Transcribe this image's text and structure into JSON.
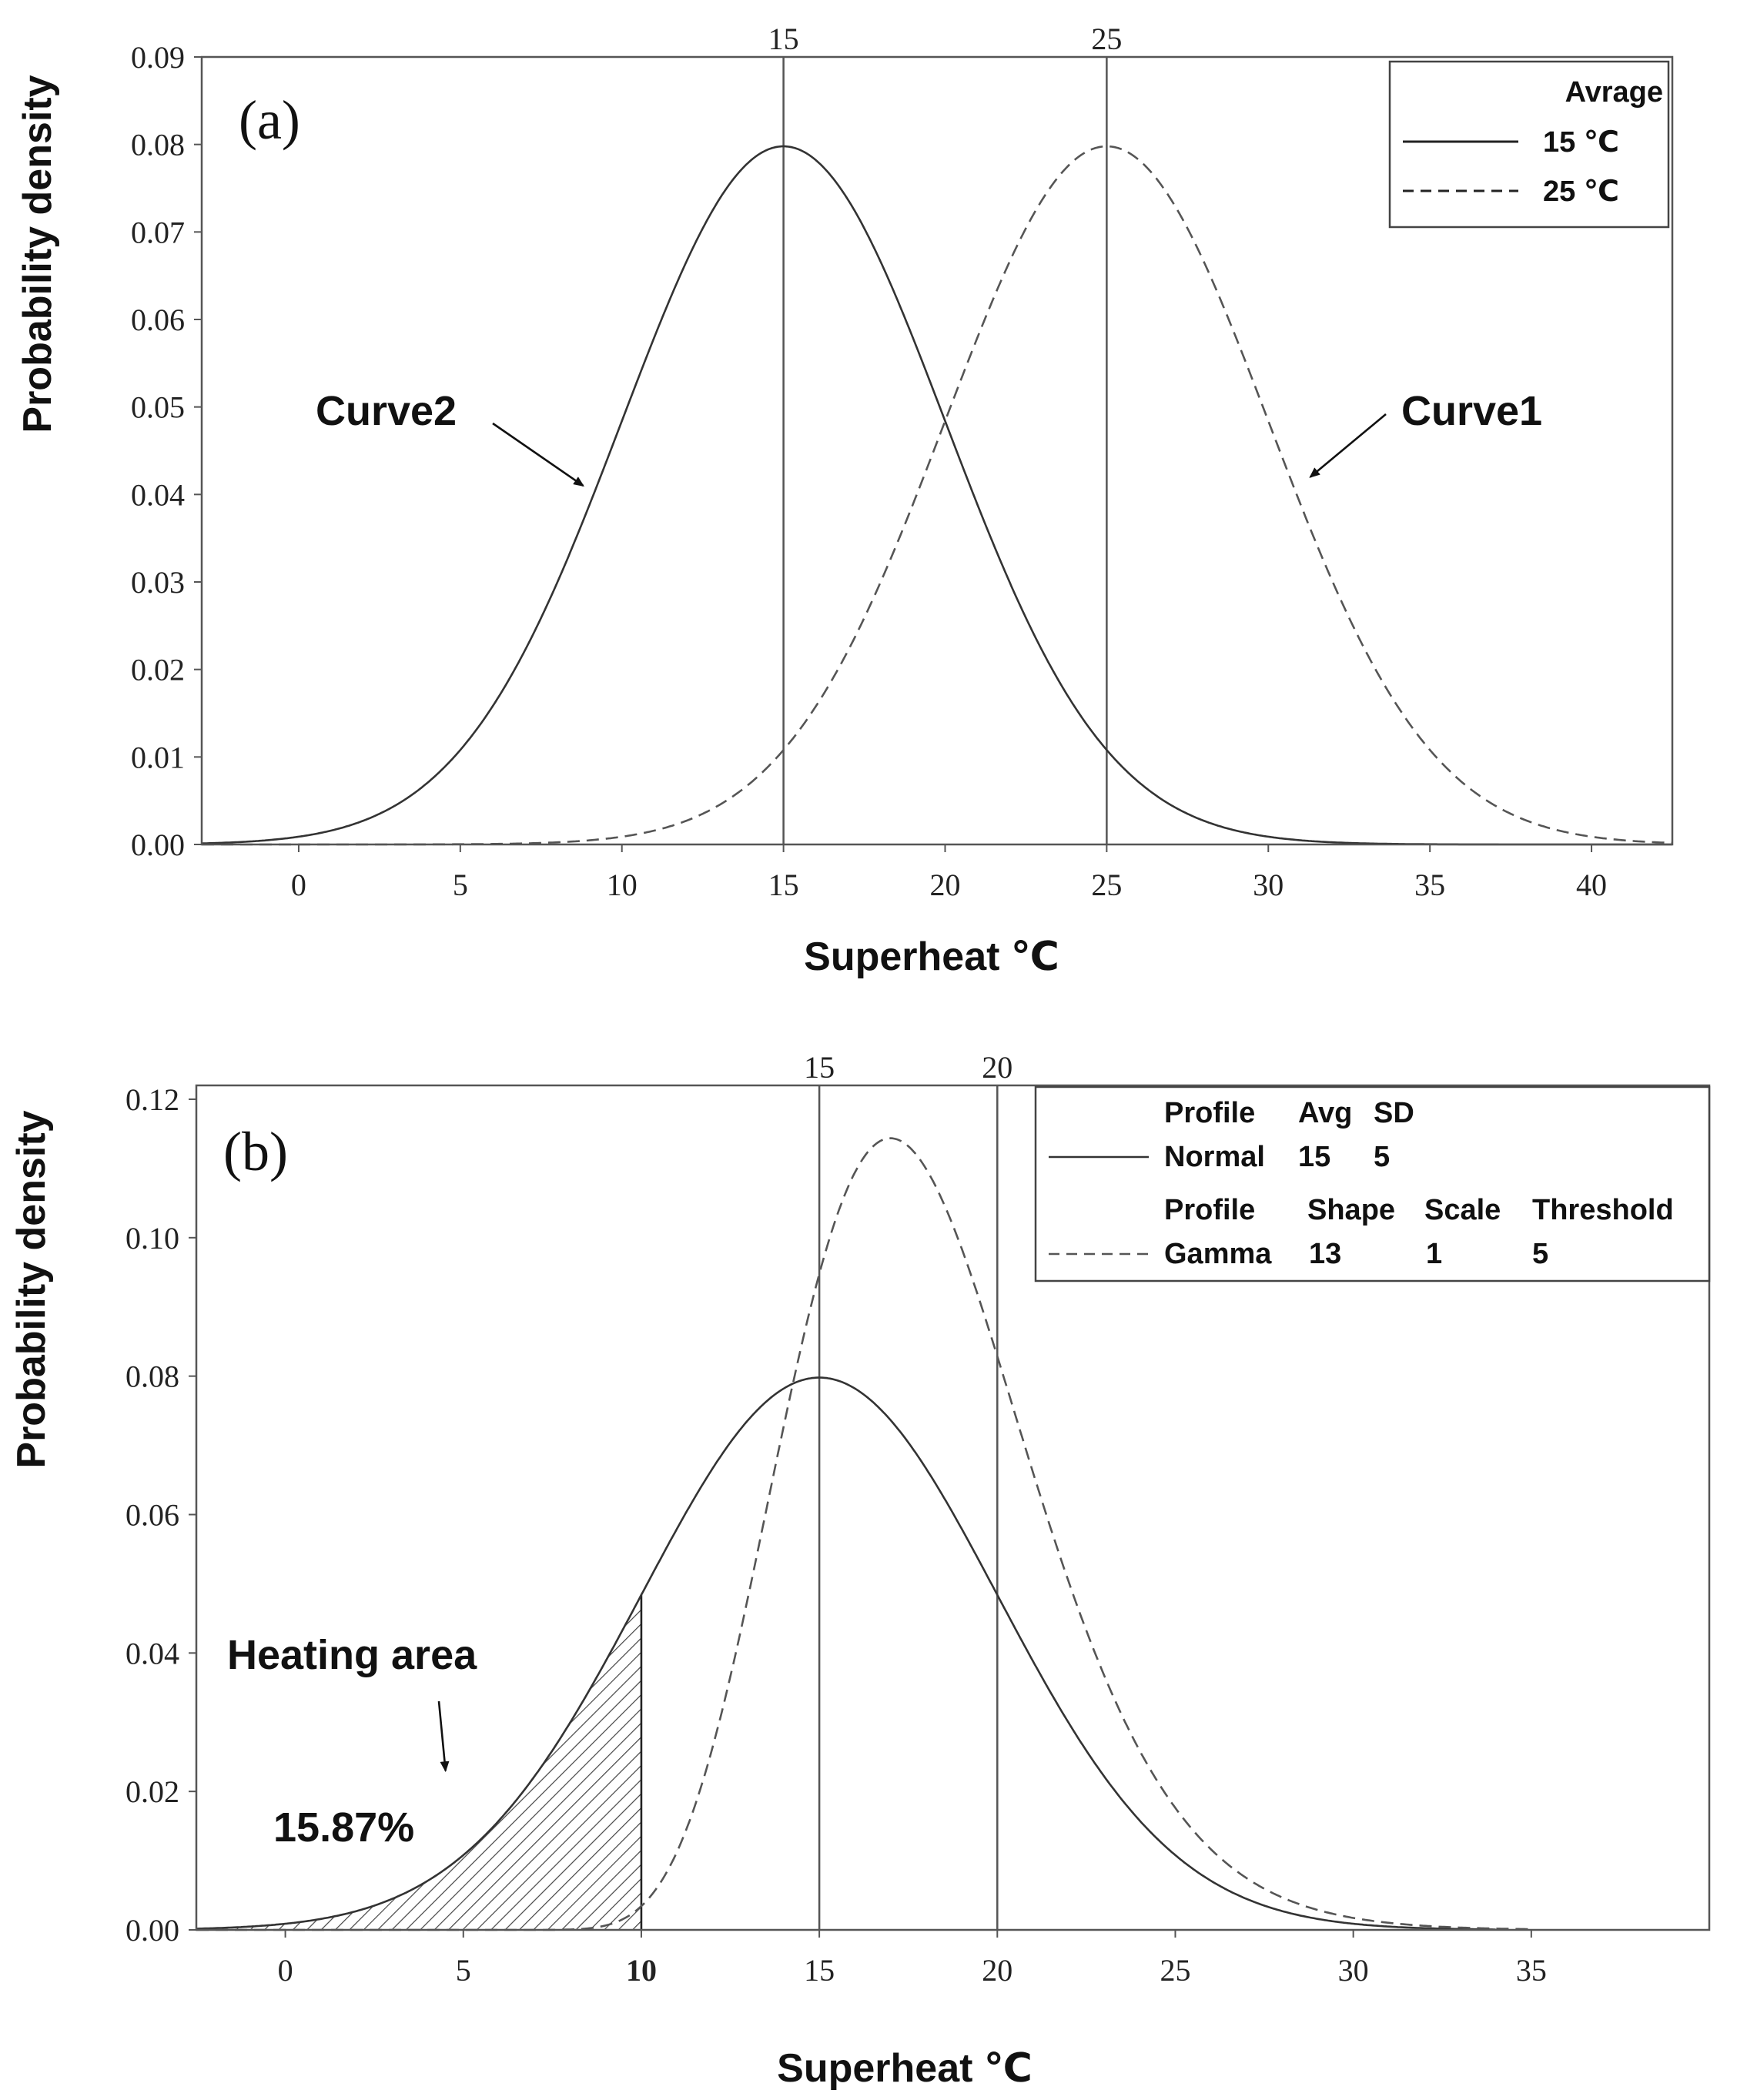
{
  "chart_data": [
    {
      "type": "line",
      "panel_label": "(a)",
      "title": "",
      "xlabel": "Superheat ℃",
      "ylabel": "Probability density",
      "xlim": [
        -3,
        42.5
      ],
      "ylim": [
        0,
        0.09
      ],
      "x_ticks": [
        0,
        5,
        10,
        15,
        20,
        25,
        30,
        35,
        40
      ],
      "x_tick_labels": [
        "0",
        "5",
        "10",
        "15",
        "20",
        "25",
        "30",
        "35",
        "40"
      ],
      "y_ticks": [
        0,
        0.01,
        0.02,
        0.03,
        0.04,
        0.05,
        0.06,
        0.07,
        0.08,
        0.09
      ],
      "y_tick_labels": [
        "0.00",
        "0.01",
        "0.02",
        "0.03",
        "0.04",
        "0.05",
        "0.06",
        "0.07",
        "0.08",
        "0.09"
      ],
      "reference_lines": [
        {
          "x": 15,
          "label": "15"
        },
        {
          "x": 25,
          "label": "25"
        }
      ],
      "series": [
        {
          "name": "15 ℃",
          "distribution": "normal",
          "mean": 15,
          "sd": 5,
          "style": "solid"
        },
        {
          "name": "25 ℃",
          "distribution": "normal",
          "mean": 25,
          "sd": 5,
          "style": "dashed"
        }
      ],
      "legend": {
        "title": "Avrage",
        "position": "top-right",
        "entries": [
          "15 ℃",
          "25 ℃"
        ]
      },
      "annotations": [
        {
          "text": "Curve2",
          "target_x": 8.8,
          "target_y": 0.041
        },
        {
          "text": "Curve1",
          "target_x": 31.3,
          "target_y": 0.042
        }
      ]
    },
    {
      "type": "line",
      "panel_label": "(b)",
      "title": "",
      "xlabel": "Superheat ℃",
      "ylabel": "Probability density",
      "xlim": [
        -2.5,
        40
      ],
      "ylim": [
        0,
        0.122
      ],
      "x_ticks": [
        0,
        5,
        10,
        15,
        20,
        25,
        30,
        35
      ],
      "x_tick_labels": [
        "0",
        "5",
        "10",
        "15",
        "20",
        "25",
        "30",
        "35"
      ],
      "y_ticks": [
        0,
        0.02,
        0.04,
        0.06,
        0.08,
        0.1,
        0.12
      ],
      "y_tick_labels": [
        "0.00",
        "0.02",
        "0.04",
        "0.06",
        "0.08",
        "0.10",
        "0.12"
      ],
      "reference_lines": [
        {
          "x": 15,
          "label": "15"
        },
        {
          "x": 20,
          "label": "20"
        }
      ],
      "series": [
        {
          "name": "Normal",
          "distribution": "normal",
          "mean": 15,
          "sd": 5,
          "style": "solid"
        },
        {
          "name": "Gamma",
          "distribution": "gamma",
          "shape": 13,
          "scale": 1,
          "threshold": 5,
          "style": "dashed"
        }
      ],
      "legend": {
        "position": "top-right",
        "normal_header": [
          "Profile",
          "Avg",
          "SD"
        ],
        "normal_row": [
          "Normal",
          "15",
          "5"
        ],
        "gamma_header": [
          "Profile",
          "Shape",
          "Scale",
          "Threshold"
        ],
        "gamma_row": [
          "Gamma",
          "13",
          "1",
          "5"
        ]
      },
      "shaded_region": {
        "series": "Normal",
        "from": -2.5,
        "to": 10,
        "percent_label": "15.87%"
      },
      "annotations": [
        {
          "text": "Heating area",
          "target_x": 4.5,
          "target_y": 0.023
        }
      ]
    }
  ]
}
